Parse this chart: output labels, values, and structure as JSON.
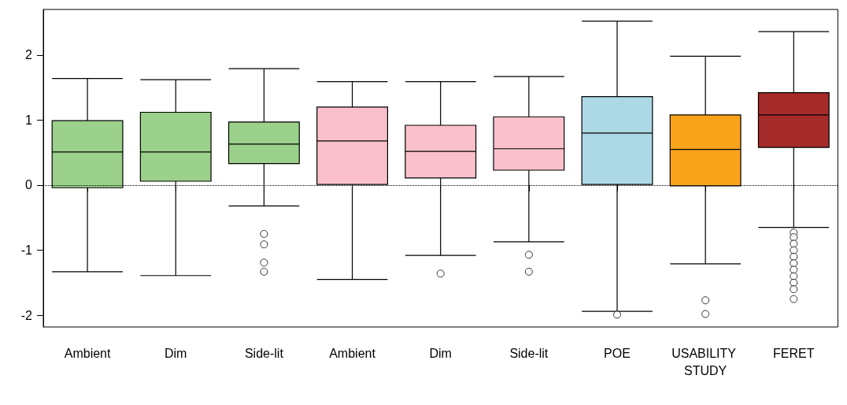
{
  "chart_data": {
    "type": "box",
    "categories": [
      "Ambient",
      "Dim",
      "Side-lit",
      "Ambient",
      "Dim",
      "Side-lit",
      "POE",
      "USABILITY STUDY",
      "FERET"
    ],
    "boxes": [
      {
        "low": -1.33,
        "q1": -0.04,
        "median": 0.51,
        "q3": 0.99,
        "high": 1.64
      },
      {
        "low": -1.39,
        "q1": 0.06,
        "median": 0.51,
        "q3": 1.12,
        "high": 1.62
      },
      {
        "low": -0.32,
        "q1": 0.33,
        "median": 0.63,
        "q3": 0.97,
        "high": 1.79,
        "outliers": [
          -0.75,
          -0.91,
          -1.19,
          -1.33
        ]
      },
      {
        "low": -1.45,
        "q1": 0.01,
        "median": 0.68,
        "q3": 1.2,
        "high": 1.59
      },
      {
        "low": -1.08,
        "q1": 0.11,
        "median": 0.52,
        "q3": 0.92,
        "high": 1.59,
        "outliers": [
          -1.36
        ]
      },
      {
        "low": -0.87,
        "q1": 0.23,
        "median": 0.56,
        "q3": 1.05,
        "high": 1.67,
        "outliers": [
          -1.07,
          -1.33
        ]
      },
      {
        "low": -1.94,
        "q1": 0.01,
        "median": 0.8,
        "q3": 1.36,
        "high": 2.52,
        "outliers": [
          -1.99
        ]
      },
      {
        "low": -1.21,
        "q1": -0.01,
        "median": 0.55,
        "q3": 1.08,
        "high": 1.98,
        "outliers": [
          -1.77,
          -1.98
        ]
      },
      {
        "low": -0.65,
        "q1": 0.58,
        "median": 1.08,
        "q3": 1.42,
        "high": 2.36,
        "outliers": [
          -0.73,
          -0.8,
          -0.9,
          -1.0,
          -1.1,
          -1.2,
          -1.3,
          -1.4,
          -1.5,
          -1.6,
          -1.75
        ]
      }
    ],
    "colors": [
      "#9bd18b",
      "#9bd18b",
      "#9bd18b",
      "#f9c0cb",
      "#f9c0cb",
      "#f9c0cb",
      "#add8e6",
      "#f9a31b",
      "#a52a2a"
    ],
    "ylim": [
      -2.18,
      2.7
    ],
    "yticks": [
      -2,
      -1,
      0,
      1,
      2
    ],
    "ref_lines": [
      {
        "axis": "y",
        "value": 0,
        "line_style": "dotted",
        "color": "#000000"
      }
    ],
    "marker": "circle",
    "grid": false
  }
}
